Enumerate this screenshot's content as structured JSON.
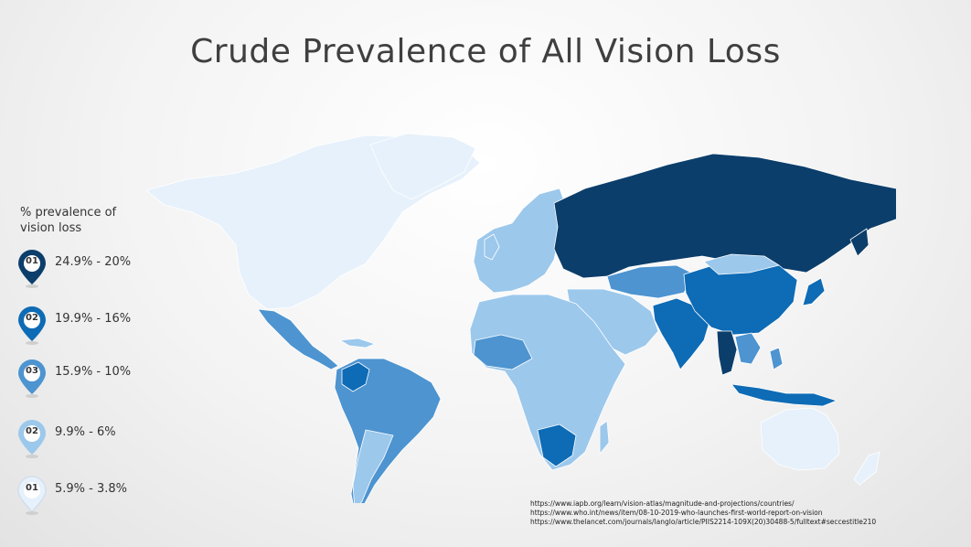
{
  "title": "Crude Prevalence of All Vision Loss",
  "legend": {
    "title_line1": "% prevalence of",
    "title_line2": "vision loss",
    "items": [
      {
        "badge": "01",
        "range": "24.9% - 20%",
        "color": "#0c3e6b"
      },
      {
        "badge": "02",
        "range": "19.9% - 16%",
        "color": "#0e6bb5"
      },
      {
        "badge": "03",
        "range": "15.9% - 10%",
        "color": "#4d94d0"
      },
      {
        "badge": "02",
        "range": "9.9% - 6%",
        "color": "#9cc8ec"
      },
      {
        "badge": "01",
        "range": "5.9% - 3.8%",
        "color": "#e6f1fb"
      }
    ]
  },
  "regions": {
    "north_america": "5.9% - 3.8%",
    "russia": "24.9% - 20%",
    "south_asia": "19.9% - 16%",
    "china": "19.9% - 16%",
    "europe": "9.9% - 6%",
    "latin_america": "15.9% - 10%",
    "africa": "9.9% - 6%",
    "southern_africa": "19.9% - 16%",
    "australia": "5.9% - 3.8%"
  },
  "sources": [
    "https://www.iapb.org/learn/vision-atlas/magnitude-and-projections/countries/",
    "https://www.who.int/news/item/08-10-2019-who-launches-first-world-report-on-vision",
    "https://www.thelancet.com/journals/langlo/article/PIIS2214-109X(20)30488-5/fulltext#seccestitle210"
  ]
}
